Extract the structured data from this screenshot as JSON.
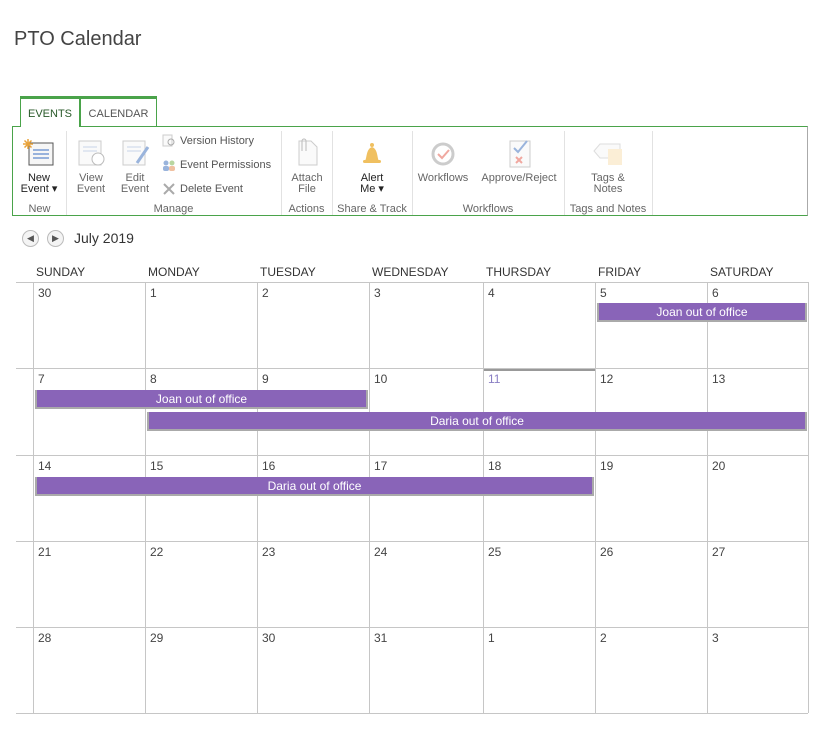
{
  "page": {
    "title": "PTO Calendar"
  },
  "tabs": [
    {
      "label": "EVENTS",
      "active": true
    },
    {
      "label": "CALENDAR",
      "active": false
    }
  ],
  "ribbon": {
    "new": {
      "label": "New",
      "new_event_1": "New",
      "new_event_2": "Event ▾"
    },
    "manage": {
      "label": "Manage",
      "view_1": "View",
      "view_2": "Event",
      "edit_1": "Edit",
      "edit_2": "Event",
      "version_history": "Version History",
      "event_permissions": "Event Permissions",
      "delete_event": "Delete Event"
    },
    "actions": {
      "label": "Actions",
      "attach_1": "Attach",
      "attach_2": "File"
    },
    "share": {
      "label": "Share & Track",
      "alert_1": "Alert",
      "alert_2": "Me ▾"
    },
    "workflows": {
      "label": "Workflows",
      "workflows": "Workflows",
      "approve": "Approve/Reject"
    },
    "tags": {
      "label": "Tags and Notes",
      "tags_1": "Tags &",
      "tags_2": "Notes"
    }
  },
  "calendar": {
    "month": "July 2019",
    "days": [
      "SUNDAY",
      "MONDAY",
      "TUESDAY",
      "WEDNESDAY",
      "THURSDAY",
      "FRIDAY",
      "SATURDAY"
    ],
    "weeks": [
      [
        "30",
        "1",
        "2",
        "3",
        "4",
        "5",
        "6"
      ],
      [
        "7",
        "8",
        "9",
        "10",
        "11",
        "12",
        "13"
      ],
      [
        "14",
        "15",
        "16",
        "17",
        "18",
        "19",
        "20"
      ],
      [
        "21",
        "22",
        "23",
        "24",
        "25",
        "26",
        "27"
      ],
      [
        "28",
        "29",
        "30",
        "31",
        "1",
        "2",
        "3"
      ]
    ],
    "today": "11",
    "event_color": "#8964b8",
    "events": [
      {
        "title": "Joan out of office",
        "week": 0,
        "start_day": 5,
        "end_day": 6
      },
      {
        "title": "Joan out of office",
        "week": 1,
        "start_day": 0,
        "end_day": 2
      },
      {
        "title": "Daria out of office",
        "week": 1,
        "start_day": 1,
        "end_day": 6
      },
      {
        "title": "Daria out of office",
        "week": 2,
        "start_day": 0,
        "end_day": 4
      }
    ]
  }
}
